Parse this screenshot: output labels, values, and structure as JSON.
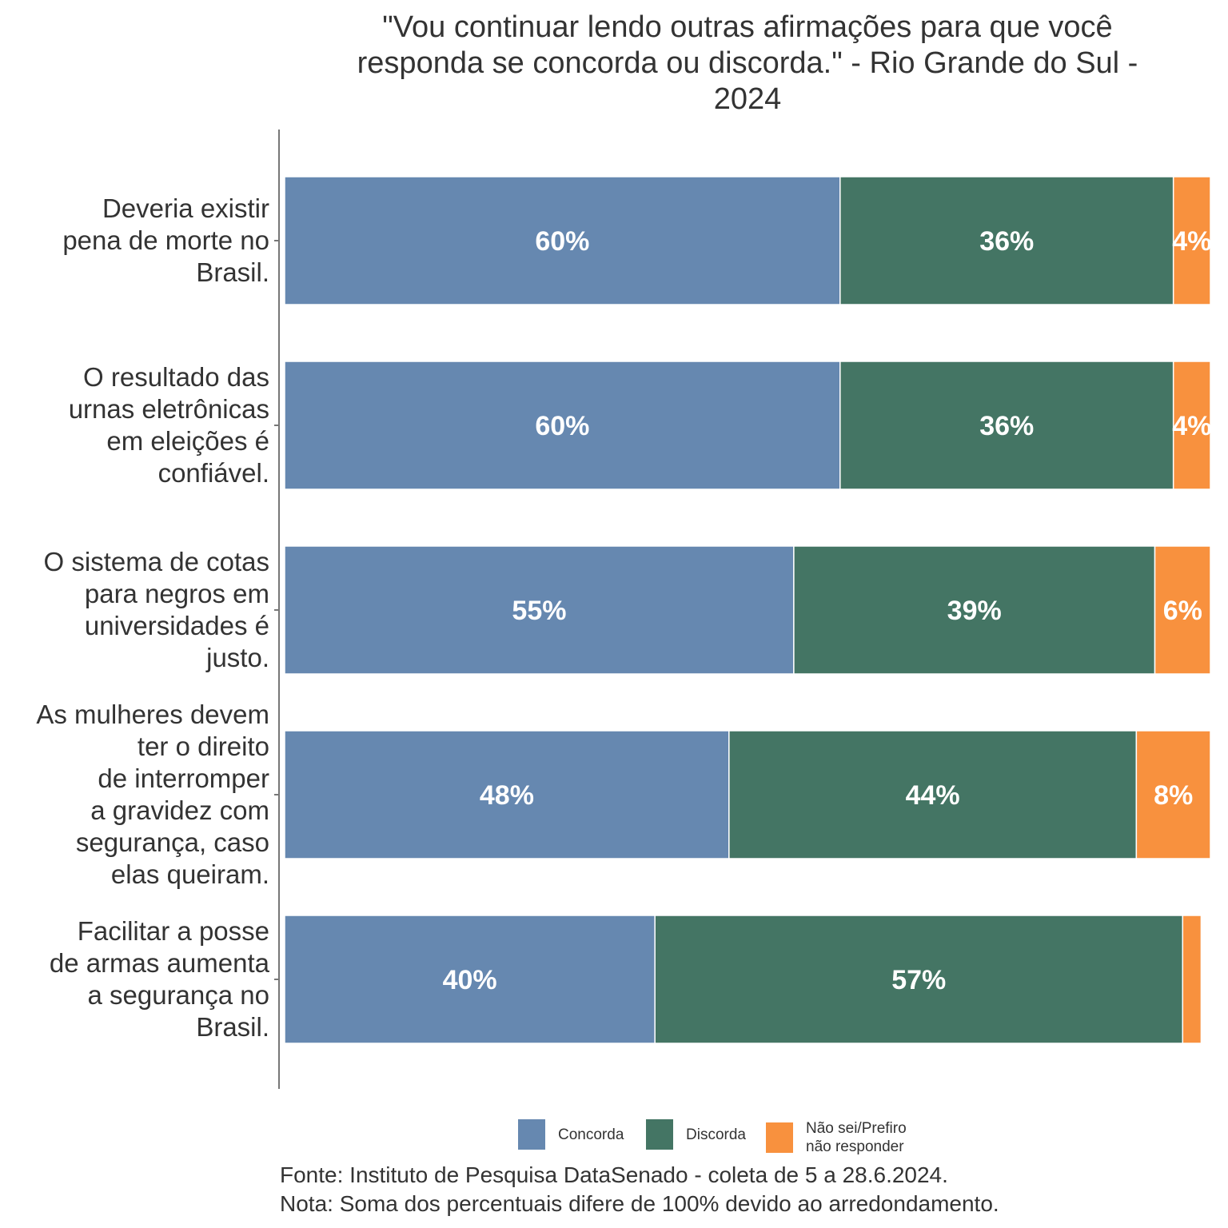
{
  "chart_data": {
    "type": "bar",
    "orientation": "horizontal",
    "stacked": true,
    "title": "\"Vou continuar lendo outras afirmações para que você responda se concorda ou discorda.\" - Rio Grande do Sul - 2024",
    "title_lines": [
      "\"Vou continuar lendo outras afirmações para que você",
      "responda se concorda ou discorda.\" - Rio Grande do Sul -",
      "2024"
    ],
    "categories": [
      "Deveria existir\npena de morte no\nBrasil.",
      "O resultado das\nurnas eletrônicas\nem eleições é\nconfiável.",
      "O sistema de cotas\npara negros em\nuniversidades é\njusto.",
      "As mulheres devem\nter o direito\nde interromper\na gravidez com\nsegurança, caso\nelas queiram.",
      "Facilitar a posse\nde armas aumenta\na segurança no\nBrasil."
    ],
    "series": [
      {
        "name": "Concorda",
        "color": "#6688b0",
        "values": [
          60,
          60,
          55,
          48,
          40
        ],
        "labels": [
          "60%",
          "60%",
          "55%",
          "48%",
          "40%"
        ]
      },
      {
        "name": "Discorda",
        "color": "#447564",
        "values": [
          36,
          36,
          39,
          44,
          57
        ],
        "labels": [
          "36%",
          "36%",
          "39%",
          "44%",
          "57%"
        ]
      },
      {
        "name": "Não sei/Prefiro\nnão responder",
        "color": "#f8913e",
        "values": [
          4,
          4,
          6,
          8,
          2
        ],
        "labels": [
          "4%",
          "4%",
          "6%",
          "8%",
          ""
        ]
      }
    ],
    "xlim": [
      0,
      100
    ],
    "grid": false,
    "legend_position": "bottom",
    "label_color": "#ffffff"
  },
  "source_lines": [
    "Fonte: Instituto de Pesquisa DataSenado - coleta de 5 a 28.6.2024.",
    "Nota: Soma dos percentuais difere de 100% devido ao arredondamento."
  ]
}
